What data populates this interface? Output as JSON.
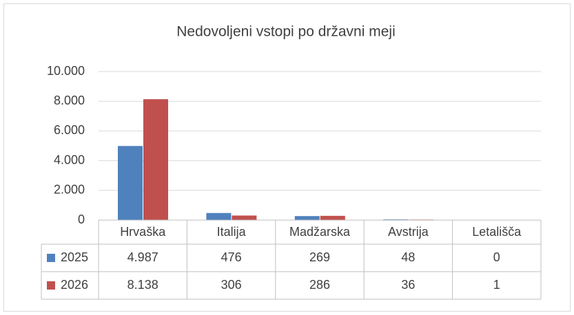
{
  "chart_data": {
    "type": "bar",
    "title": "Nedovoljeni vstopi po državni meji",
    "categories": [
      "Hrvaška",
      "Italija",
      "Madžarska",
      "Avstrija",
      "Letališča"
    ],
    "series": [
      {
        "name": "2025",
        "color": "#4f81bd",
        "values": [
          4987,
          476,
          269,
          48,
          0
        ],
        "value_labels": [
          "4.987",
          "476",
          "269",
          "48",
          "0"
        ]
      },
      {
        "name": "2026",
        "color": "#c0504d",
        "values": [
          8138,
          306,
          286,
          36,
          1
        ],
        "value_labels": [
          "8.138",
          "306",
          "286",
          "36",
          "1"
        ]
      }
    ],
    "ylim": [
      0,
      10000
    ],
    "yticks": [
      0,
      {
        "value": 2000,
        "label": "2.000"
      },
      {
        "value": 4000,
        "label": "4.000"
      },
      {
        "value": 6000,
        "label": "6.000"
      },
      {
        "value": 8000,
        "label": "8.000"
      },
      {
        "value": 10000,
        "label": "10.000"
      }
    ],
    "grid": true
  }
}
